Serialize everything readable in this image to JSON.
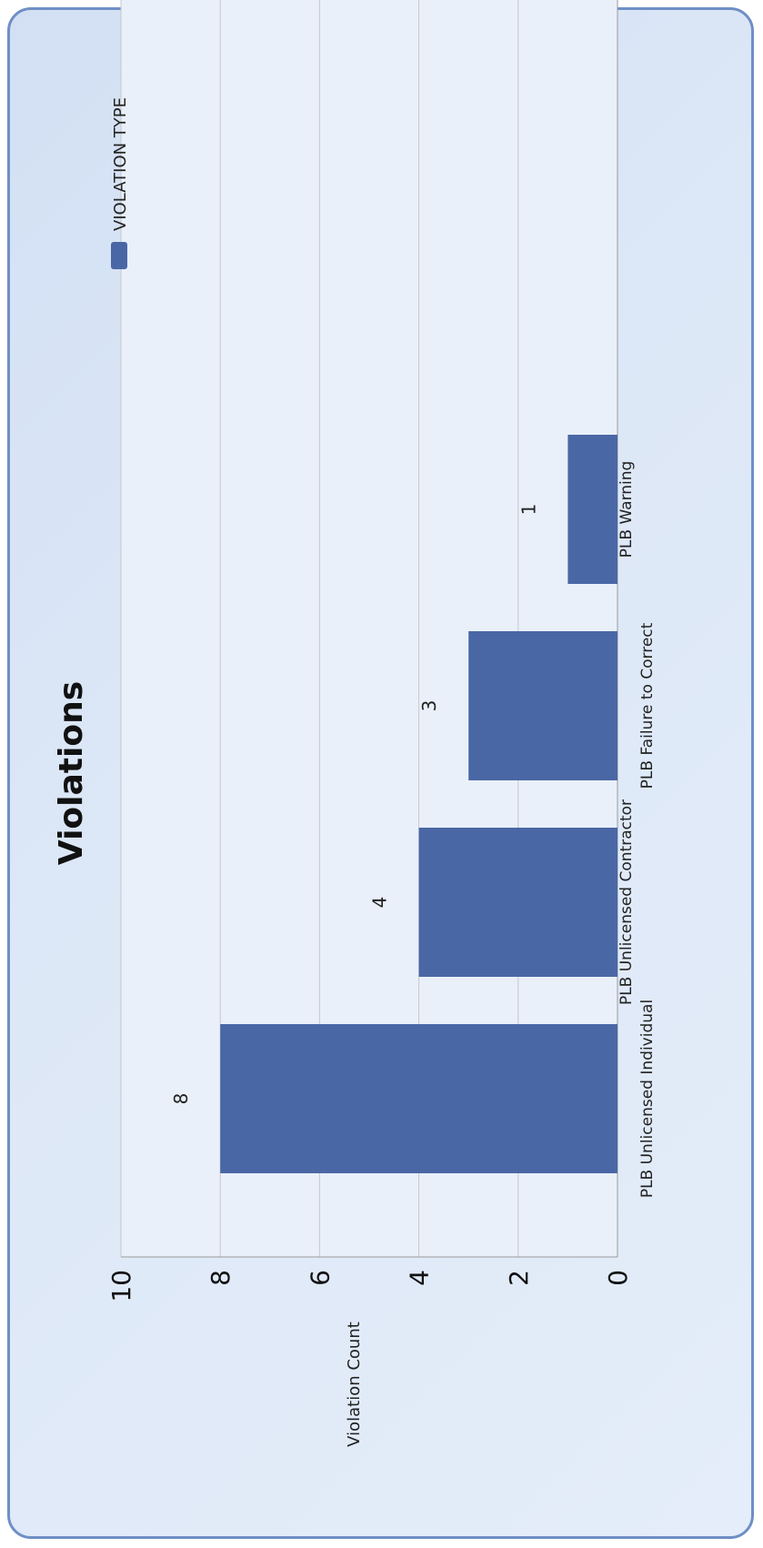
{
  "chart_data": {
    "type": "bar",
    "title": "Violations",
    "ylabel": "Violation Count",
    "xlabel": "",
    "ylim": [
      0,
      10
    ],
    "yticks": [
      0,
      2,
      4,
      6,
      8,
      10
    ],
    "grid": true,
    "legend_position": "top-right",
    "categories": [
      "PLB Unlicensed Individual",
      "PLB Unlicensed Contractor",
      "PLB Failure to Correct",
      "PLB Warning"
    ],
    "series": [
      {
        "name": "VIOLATION TYPE",
        "values": [
          8,
          4,
          3,
          1
        ]
      }
    ]
  },
  "colors": {
    "bar": "#4a67a5",
    "plot_background": "#e9f0fa",
    "gridline": "#c8c8c8",
    "card_border": "#6f8fc6"
  }
}
